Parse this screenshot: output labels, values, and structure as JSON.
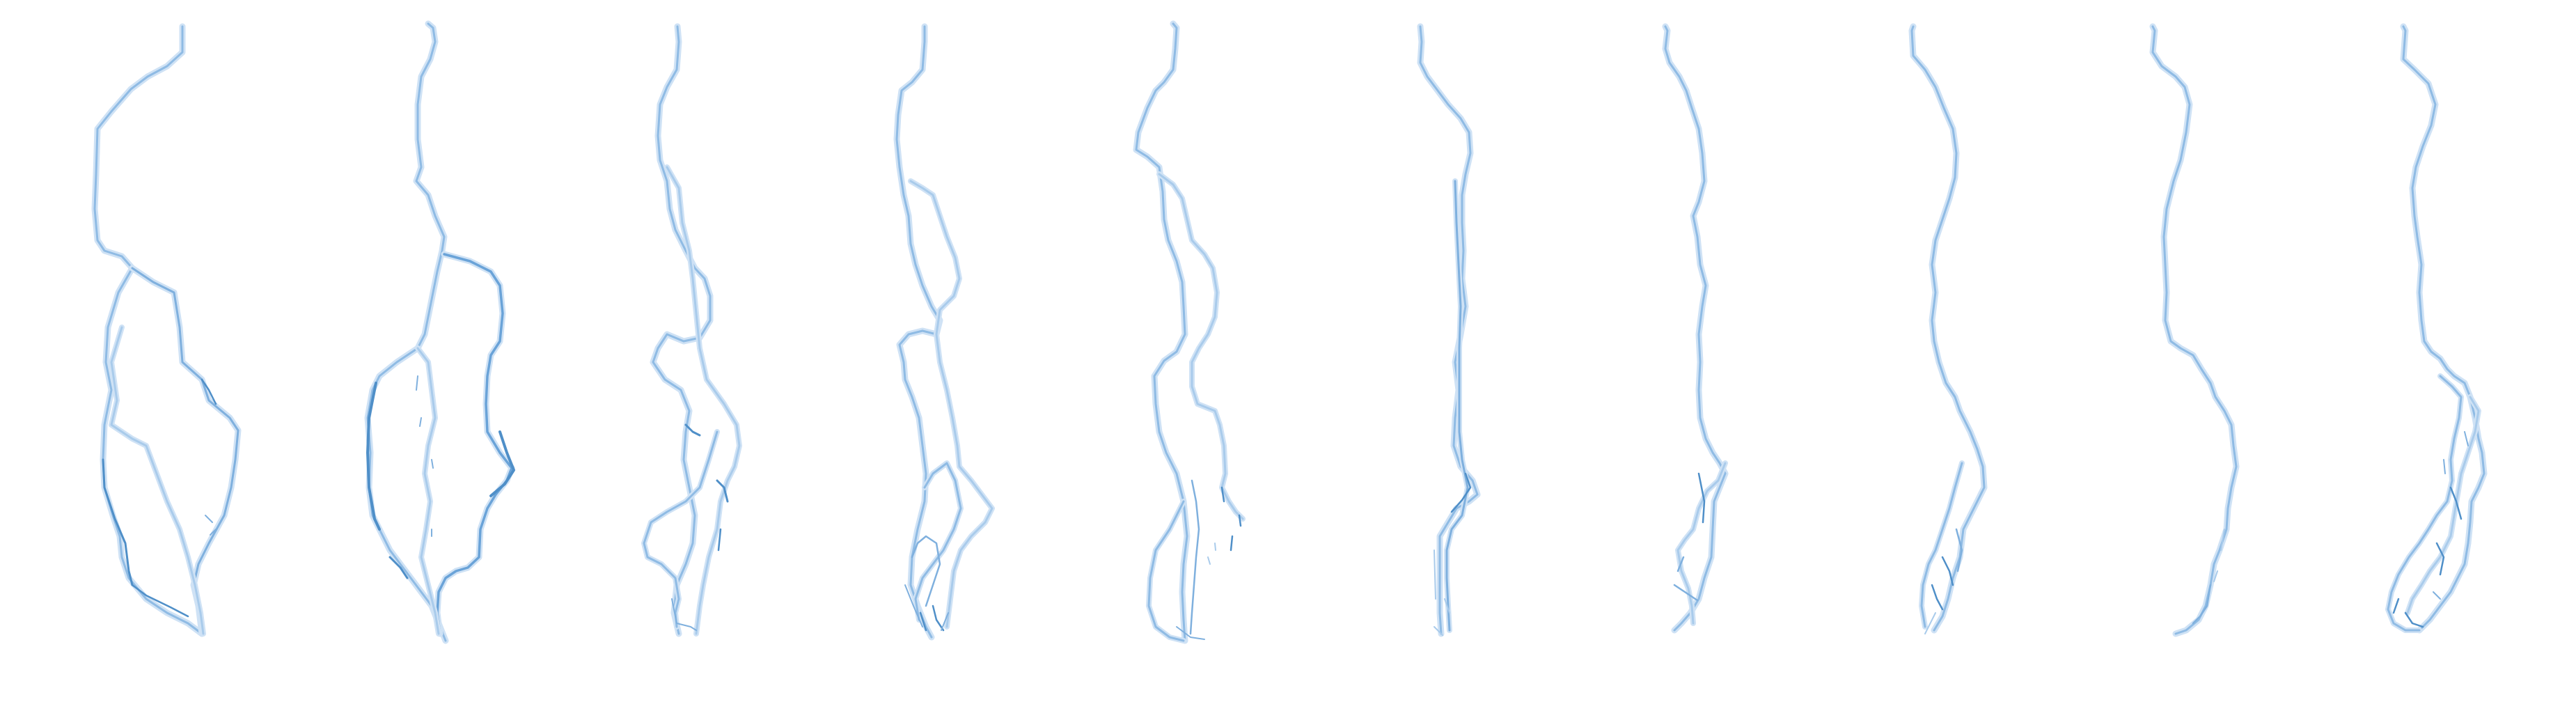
{
  "figure": {
    "description_text": "",
    "palette": {
      "background": "#ffffff",
      "halo": "#cfe2f5",
      "light": "#a9cbeb",
      "medium": "#7fb0de",
      "dark": "#4f8fc8"
    },
    "panel_count": 10
  }
}
